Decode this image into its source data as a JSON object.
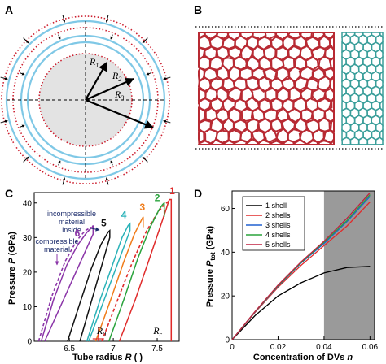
{
  "panels": {
    "a": "A",
    "b": "B",
    "c": "C",
    "d": "D"
  },
  "panel_a": {
    "labels": [
      {
        "main": "R",
        "sub": "1"
      },
      {
        "main": "R",
        "sub": "2"
      },
      {
        "main": "R",
        "sub": "3"
      }
    ],
    "colors": {
      "inner_fill": "#e3e3e3",
      "dotted": "#cc1f2f",
      "shell": "#7fc8e6",
      "arrows": "#000000"
    }
  },
  "panel_b": {
    "colors": {
      "left_tube": "#b82a33",
      "right_tube": "#3a9e9a"
    }
  },
  "panel_c": {
    "ylabel": "Pressure P (GPa)",
    "ylabel_parts": {
      "pre": "Pressure ",
      "var": "P",
      "post": " (GPa)"
    },
    "xlabel": "Tube radius R ( )",
    "xlabel_parts": {
      "pre": "Tube radius ",
      "var": "R",
      "post": " ( )"
    },
    "annot_incompressible": [
      "incompressible",
      "material",
      "inside"
    ],
    "annot_compressible": [
      "compressible",
      "material"
    ],
    "r0": {
      "main": "R",
      "sub": "0"
    },
    "rc": {
      "main": "R",
      "sub": "c"
    },
    "curve_labels": [
      {
        "text": "1",
        "color": "#e02b2b"
      },
      {
        "text": "2",
        "color": "#2aa33c"
      },
      {
        "text": "3",
        "color": "#f07c1a"
      },
      {
        "text": "4",
        "color": "#2ab2b8"
      },
      {
        "text": "5",
        "color": "#111111"
      },
      {
        "text": "6",
        "color": "#8b35a8"
      }
    ],
    "yticks": [
      "0",
      "10",
      "20",
      "30",
      "40"
    ],
    "xticks": [
      "6.5",
      "7",
      "7.5"
    ]
  },
  "panel_d": {
    "ylabel": "Pressure P tot (GPa)",
    "ylabel_parts": {
      "pre": "Pressure ",
      "var": "P",
      "sub": "tot",
      "post": " (GPa)"
    },
    "xlabel": "Concentration of DVs n",
    "xlabel_parts": {
      "pre": "Concentration of DVs ",
      "var": "n"
    },
    "yticks": [
      "0",
      "20",
      "40",
      "60"
    ],
    "xticks": [
      "0",
      "0.02",
      "0.04",
      "0.06"
    ],
    "shade_color": "#9a9a9a"
  },
  "chart_data": [
    {
      "type": "line",
      "panel": "C",
      "xlabel": "Tube radius R ( )",
      "ylabel": "Pressure P (GPa)",
      "xlim": [
        6.1,
        7.75
      ],
      "ylim": [
        0,
        43
      ],
      "series": [
        {
          "name": "1",
          "color": "#e02b2b",
          "x": [
            7.07,
            7.25,
            7.4,
            7.52,
            7.6,
            7.63,
            7.64,
            7.66,
            7.66
          ],
          "y": [
            0,
            12,
            23,
            32,
            38,
            40.5,
            41,
            41,
            0
          ]
        },
        {
          "name": "2",
          "color": "#2aa33c",
          "x": [
            6.95,
            7.12,
            7.28,
            7.42,
            7.52,
            7.56,
            7.58,
            7.58
          ],
          "y": [
            0,
            12,
            24,
            33,
            38,
            39.5,
            40,
            36
          ]
        },
        {
          "name": "3",
          "color": "#f07c1a",
          "x": [
            6.8,
            6.97,
            7.12,
            7.24,
            7.32,
            7.34,
            7.34
          ],
          "y": [
            0,
            12,
            23,
            31,
            35,
            36,
            33
          ]
        },
        {
          "name": "4",
          "color": "#2ab2b8",
          "x": [
            6.7,
            6.85,
            6.99,
            7.1,
            7.17,
            7.19,
            7.19,
            6.72
          ],
          "y": [
            0,
            12,
            22,
            30,
            33.5,
            34,
            32,
            0
          ]
        },
        {
          "name": "5",
          "color": "#111111",
          "x": [
            6.48,
            6.62,
            6.75,
            6.86,
            6.94,
            6.96,
            6.96,
            6.62
          ],
          "y": [
            0,
            11,
            21,
            28,
            31.5,
            32,
            30,
            0
          ]
        },
        {
          "name": "6",
          "color": "#8b35a8",
          "x": [
            6.18,
            6.32,
            6.47,
            6.6,
            6.7,
            6.76,
            6.77,
            6.77,
            6.22
          ],
          "y": [
            0,
            12,
            22,
            28,
            31.5,
            33,
            33.5,
            31,
            0
          ]
        }
      ],
      "dashed": [
        {
          "color": "#e02b2b",
          "x": [
            6.87,
            7.05,
            7.22,
            7.38,
            7.5,
            7.58,
            7.63
          ],
          "y": [
            0,
            12,
            23,
            32,
            37,
            39.5,
            40.5
          ]
        },
        {
          "color": "#8b35a8",
          "x": [
            6.15,
            6.3,
            6.45,
            6.58,
            6.68,
            6.75
          ],
          "y": [
            0,
            13,
            23,
            29,
            32,
            33
          ]
        }
      ],
      "markers": {
        "R0": 6.83,
        "Rc": 7.66
      }
    },
    {
      "type": "line",
      "panel": "D",
      "xlabel": "Concentration of DVs n",
      "ylabel": "Pressure P tot (GPa)",
      "xlim": [
        0,
        0.062
      ],
      "ylim": [
        0,
        68
      ],
      "shaded_x": [
        0.04,
        0.062
      ],
      "series": [
        {
          "name": "1 shell",
          "color": "#000000",
          "x": [
            0,
            0.01,
            0.02,
            0.03,
            0.04,
            0.05,
            0.06
          ],
          "y": [
            0,
            11,
            20,
            26,
            30.5,
            33,
            33.5
          ]
        },
        {
          "name": "2 shells",
          "color": "#e02b2b",
          "x": [
            0,
            0.01,
            0.02,
            0.03,
            0.04,
            0.05,
            0.06
          ],
          "y": [
            0,
            12.5,
            24,
            34,
            43,
            52,
            63
          ]
        },
        {
          "name": "3 shells",
          "color": "#2060d0",
          "x": [
            0,
            0.01,
            0.02,
            0.03,
            0.04,
            0.05,
            0.06
          ],
          "y": [
            0,
            12.7,
            24.5,
            35,
            44,
            54,
            65.5
          ]
        },
        {
          "name": "4 shells",
          "color": "#2aa33c",
          "x": [
            0,
            0.01,
            0.02,
            0.03,
            0.04,
            0.05,
            0.06
          ],
          "y": [
            0,
            12.8,
            24.7,
            35.3,
            44.5,
            54.5,
            66.3
          ]
        },
        {
          "name": "5 shells",
          "color": "#c02040",
          "x": [
            0,
            0.01,
            0.02,
            0.03,
            0.04,
            0.05,
            0.06
          ],
          "y": [
            0,
            12.9,
            25,
            35.6,
            45,
            55.5,
            67.2
          ]
        }
      ]
    }
  ]
}
